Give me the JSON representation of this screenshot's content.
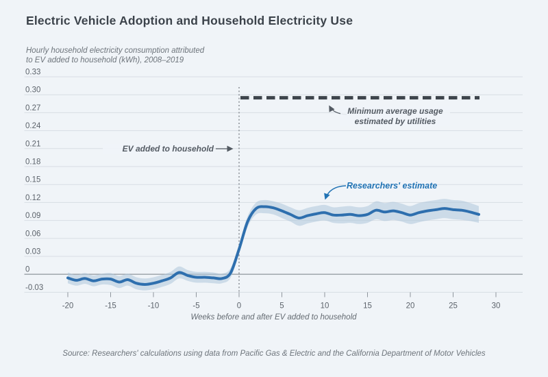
{
  "header": {
    "title": "Electric Vehicle Adoption and Household Electricity Use",
    "subtitle_line1": "Hourly household electricity consumption attributed",
    "subtitle_line2": "to EV added to household (kWh), 2008–2019"
  },
  "chart_data": {
    "type": "line",
    "title": "Electric Vehicle Adoption and Household Electricity Use",
    "xlabel": "Weeks before and after EV added to household",
    "ylabel": "Hourly household electricity consumption attributed to EV added to household (kWh), 2008–2019",
    "xlim": [
      -22,
      33
    ],
    "ylim": [
      -0.03,
      0.33
    ],
    "grid": true,
    "xticks": [
      -20,
      -15,
      -10,
      -5,
      0,
      5,
      10,
      15,
      20,
      25,
      30
    ],
    "yticks": [
      0.33,
      0.3,
      0.27,
      0.24,
      0.21,
      0.18,
      0.15,
      0.12,
      0.09,
      0.06,
      0.03,
      0,
      -0.03
    ],
    "ytick_labels": [
      "0.33",
      "0.30",
      "0.27",
      "0.24",
      "0.21",
      "0.18",
      "0.15",
      "0.12",
      "0.09",
      "0.06",
      "0.03",
      "0",
      "-0.03"
    ],
    "x": [
      -20,
      -19,
      -18,
      -17,
      -16,
      -15,
      -14,
      -13,
      -12,
      -11,
      -10,
      -9,
      -8,
      -7,
      -6,
      -5,
      -4,
      -3,
      -2,
      -1,
      0,
      1,
      2,
      3,
      4,
      5,
      6,
      7,
      8,
      9,
      10,
      11,
      12,
      13,
      14,
      15,
      16,
      17,
      18,
      19,
      20,
      21,
      22,
      23,
      24,
      25,
      26,
      27,
      28
    ],
    "series": [
      {
        "name": "Researchers' estimate",
        "color": "#2e6fae",
        "values": [
          -0.006,
          -0.01,
          -0.007,
          -0.011,
          -0.008,
          -0.008,
          -0.013,
          -0.009,
          -0.015,
          -0.017,
          -0.015,
          -0.011,
          -0.006,
          0.003,
          -0.002,
          -0.005,
          -0.005,
          -0.006,
          -0.007,
          0.002,
          0.042,
          0.088,
          0.11,
          0.113,
          0.111,
          0.106,
          0.1,
          0.094,
          0.098,
          0.101,
          0.103,
          0.099,
          0.099,
          0.1,
          0.098,
          0.1,
          0.107,
          0.104,
          0.106,
          0.103,
          0.099,
          0.103,
          0.106,
          0.108,
          0.11,
          0.108,
          0.107,
          0.104,
          0.1
        ]
      }
    ],
    "band_color": "#aec6da",
    "band_upper": [
      0.003,
      -0.001,
      0.002,
      -0.002,
      0.001,
      0.002,
      -0.003,
      0.001,
      -0.005,
      -0.007,
      -0.005,
      -0.001,
      0.004,
      0.013,
      0.007,
      0.004,
      0.004,
      0.003,
      0.001,
      0.01,
      0.05,
      0.097,
      0.12,
      0.124,
      0.122,
      0.118,
      0.112,
      0.107,
      0.111,
      0.114,
      0.116,
      0.112,
      0.113,
      0.114,
      0.112,
      0.114,
      0.122,
      0.119,
      0.121,
      0.118,
      0.114,
      0.119,
      0.122,
      0.124,
      0.126,
      0.124,
      0.123,
      0.119,
      0.114
    ],
    "band_lower": [
      -0.015,
      -0.019,
      -0.016,
      -0.02,
      -0.017,
      -0.018,
      -0.023,
      -0.019,
      -0.025,
      -0.027,
      -0.025,
      -0.021,
      -0.016,
      -0.007,
      -0.011,
      -0.014,
      -0.014,
      -0.015,
      -0.015,
      -0.006,
      0.034,
      0.079,
      0.1,
      0.102,
      0.1,
      0.094,
      0.088,
      0.081,
      0.085,
      0.088,
      0.09,
      0.086,
      0.085,
      0.086,
      0.084,
      0.086,
      0.092,
      0.089,
      0.091,
      0.088,
      0.084,
      0.087,
      0.09,
      0.092,
      0.094,
      0.092,
      0.091,
      0.089,
      0.086
    ],
    "reference_line": {
      "value": 0.295,
      "x_start": 0,
      "x_end": 28,
      "style": "dashed",
      "color": "#3e454c",
      "label": "Minimum average usage estimated by utilities"
    },
    "event_line": {
      "x": 0,
      "style": "dotted",
      "color": "#70767d",
      "label": "EV added to household"
    },
    "legend_position": "none"
  },
  "annotations": {
    "event": {
      "label": "EV added to household"
    },
    "reference": {
      "line1": "Minimum average usage",
      "line2": "estimated by utilities"
    },
    "estimate": {
      "label": "Researchers' estimate"
    }
  },
  "footer": {
    "source": "Source: Researchers' calculations using data from Pacific Gas & Electric and the California Department of Motor Vehicles"
  }
}
